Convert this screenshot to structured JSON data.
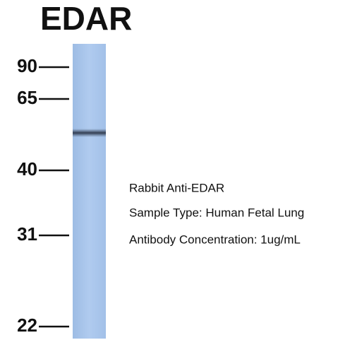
{
  "header": {
    "title": "EDAR"
  },
  "markers": [
    "90",
    "65",
    "40",
    "31",
    "22"
  ],
  "annotations": [
    "Rabbit Anti-EDAR",
    "Sample Type: Human Fetal Lung",
    "Antibody Concentration: 1ug/mL"
  ]
}
